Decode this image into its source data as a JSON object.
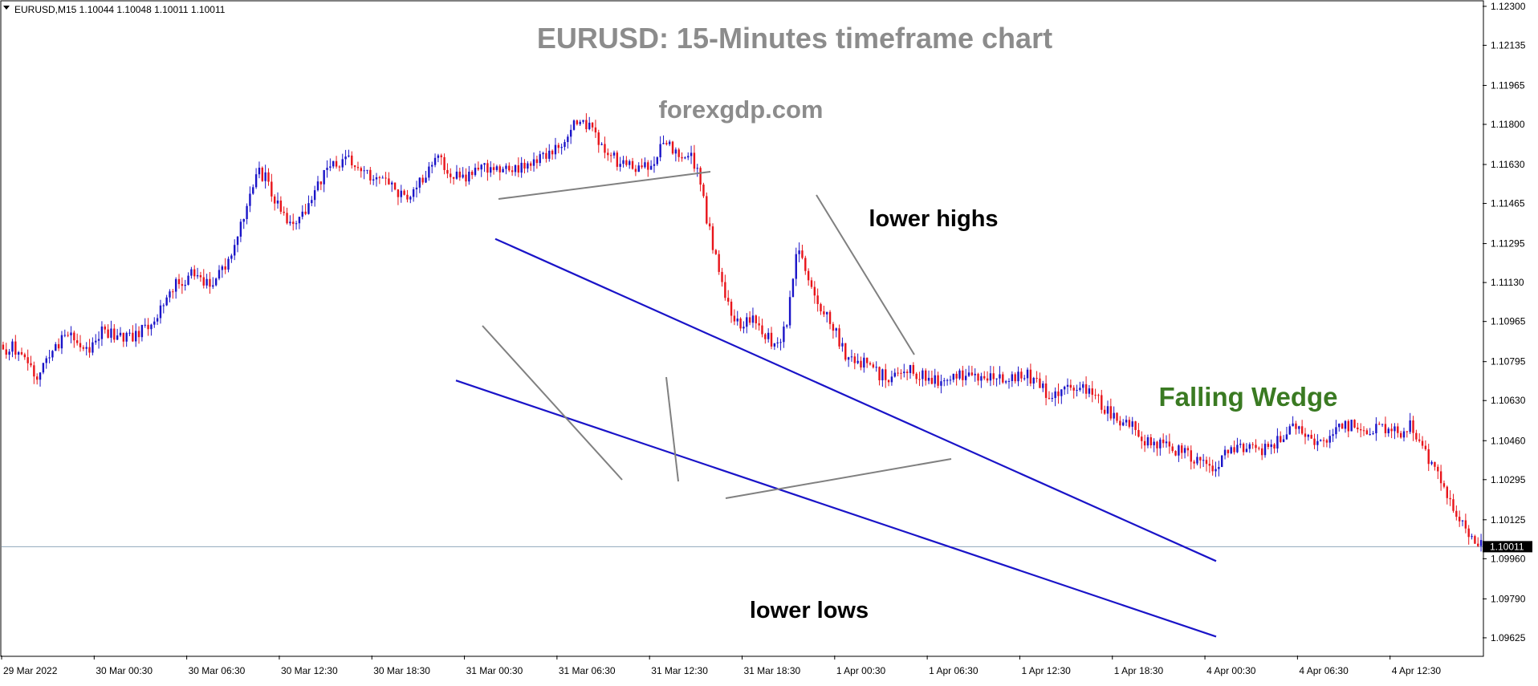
{
  "header": {
    "symbol_line": "EURUSD,M15  1.10044 1.10048 1.10011 1.10011"
  },
  "title": "EURUSD: 15-Minutes timeframe chart",
  "watermark": "forexgdp.com",
  "annotations": {
    "lower_highs": "lower highs",
    "lower_lows": "lower lows",
    "pattern": "Falling Wedge"
  },
  "colors": {
    "background": "#ffffff",
    "bull_candle": "#1a14c8",
    "bear_candle": "#e8141a",
    "trendline": "#1a14c8",
    "pointer": "#808080",
    "title_text": "#8c8c8c",
    "pattern_text": "#3a7a22",
    "current_price_line": "#8fa8bb",
    "axis": "#000000"
  },
  "chart_data": {
    "type": "candlestick",
    "title": "EURUSD: 15-Minutes timeframe chart",
    "instrument": "EURUSD",
    "timeframe": "M15",
    "ohlc_last": {
      "open": 1.10044,
      "high": 1.10048,
      "low": 1.10011,
      "close": 1.10011
    },
    "current_price": 1.10011,
    "current_price_label": "1.10011",
    "ylim": [
      1.0955,
      1.1232
    ],
    "y_ticks": [
      "1.12300",
      "1.12135",
      "1.11965",
      "1.11800",
      "1.11630",
      "1.11465",
      "1.11295",
      "1.11130",
      "1.10965",
      "1.10795",
      "1.10630",
      "1.10460",
      "1.10295",
      "1.10125",
      "1.09960",
      "1.09790",
      "1.09625"
    ],
    "x_ticks": [
      "29 Mar 2022",
      "30 Mar 00:30",
      "30 Mar 06:30",
      "30 Mar 12:30",
      "30 Mar 18:30",
      "31 Mar 00:30",
      "31 Mar 06:30",
      "31 Mar 12:30",
      "31 Mar 18:30",
      "1 Apr 00:30",
      "1 Apr 06:30",
      "1 Apr 12:30",
      "1 Apr 18:30",
      "4 Apr 00:30",
      "4 Apr 06:30",
      "4 Apr 12:30"
    ],
    "bar_count": 480,
    "closes": [
      1.1083,
      1.1086,
      1.1082,
      1.1078,
      1.1074,
      1.1077,
      1.1082,
      1.1088,
      1.109,
      1.1087,
      1.1083,
      1.1087,
      1.1093,
      1.1092,
      1.1091,
      1.1089,
      1.109,
      1.1093,
      1.1095,
      1.11,
      1.1107,
      1.1112,
      1.1114,
      1.1117,
      1.1115,
      1.1112,
      1.1115,
      1.112,
      1.1125,
      1.1136,
      1.115,
      1.116,
      1.1158,
      1.115,
      1.1142,
      1.1136,
      1.1138,
      1.1145,
      1.1153,
      1.1158,
      1.1162,
      1.1163,
      1.1165,
      1.1163,
      1.116,
      1.1158,
      1.1157,
      1.1155,
      1.1152,
      1.115,
      1.1152,
      1.1156,
      1.116,
      1.1165,
      1.1163,
      1.1158,
      1.1157,
      1.1158,
      1.116,
      1.1161,
      1.1162,
      1.116,
      1.116,
      1.1162,
      1.1163,
      1.1164,
      1.1166,
      1.1168,
      1.1171,
      1.1177,
      1.1182,
      1.118,
      1.1177,
      1.1172,
      1.1168,
      1.1164,
      1.1162,
      1.1162,
      1.1162,
      1.1163,
      1.1168,
      1.1171,
      1.117,
      1.1168,
      1.1167,
      1.116,
      1.114,
      1.1125,
      1.111,
      1.11,
      1.1094,
      1.1096,
      1.1098,
      1.1092,
      1.1088,
      1.1086,
      1.11,
      1.1128,
      1.112,
      1.1108,
      1.1103,
      1.1097,
      1.109,
      1.1082,
      1.108,
      1.1079,
      1.1077,
      1.1074,
      1.1073,
      1.1074,
      1.1075,
      1.1076,
      1.1074,
      1.1072,
      1.1071,
      1.1072,
      1.1073,
      1.1074,
      1.1074,
      1.1073,
      1.1074,
      1.1074,
      1.1073,
      1.1072,
      1.1073,
      1.1074,
      1.1072,
      1.1068,
      1.1063,
      1.1065,
      1.1068,
      1.107,
      1.1069,
      1.1067,
      1.1062,
      1.1058,
      1.1056,
      1.1054,
      1.1052,
      1.1048,
      1.1045,
      1.1045,
      1.1044,
      1.1043,
      1.1041,
      1.1039,
      1.1037,
      1.1035,
      1.1035,
      1.1039,
      1.1043,
      1.1044,
      1.1043,
      1.1041,
      1.1042,
      1.1044,
      1.1047,
      1.105,
      1.1051,
      1.1048,
      1.1047,
      1.1046,
      1.1048,
      1.105,
      1.1052,
      1.1053,
      1.1052,
      1.1051,
      1.1052,
      1.1051,
      1.105,
      1.105,
      1.1052,
      1.1046,
      1.1039,
      1.1032,
      1.1028,
      1.102,
      1.1014,
      1.1006,
      1.1002,
      1.1001
    ],
    "annotations": [
      {
        "text": "lower highs",
        "points": [
          "31 Mar 15:00 high 1.11315",
          "4 Apr 08:00 high 1.10530"
        ]
      },
      {
        "text": "lower lows",
        "points": [
          "31 Mar 12:30 low 1.10700",
          "1 Apr 08:00 low 1.10420",
          "4 Apr 13:30 low 1.10011"
        ]
      },
      {
        "text": "Falling Wedge"
      }
    ],
    "trendlines": [
      {
        "name": "upper",
        "from": {
          "x": "31 Mar 15:00",
          "y": 1.11315
        },
        "to": {
          "x": "4 Apr 20:00",
          "y": 1.0995
        }
      },
      {
        "name": "lower",
        "from": {
          "x": "31 Mar 12:00",
          "y": 1.10715
        },
        "to": {
          "x": "4 Apr 20:00",
          "y": 1.0963
        }
      }
    ]
  }
}
